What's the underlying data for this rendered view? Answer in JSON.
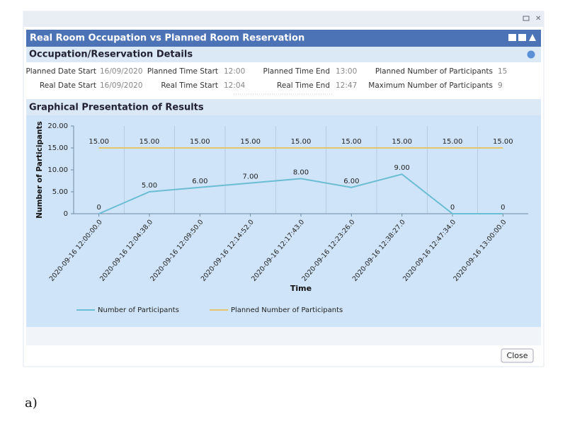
{
  "window": {
    "title": "Real Room Occupation vs Planned Room Reservation"
  },
  "details": {
    "title": "Occupation/Reservation Details",
    "rows": [
      [
        {
          "label": "Planned Date Start",
          "value": "16/09/2020"
        },
        {
          "label": "Planned Time Start",
          "value": "12:00"
        },
        {
          "label": "Planned Time End",
          "value": "13:00"
        },
        {
          "label": "Planned Number of Participants",
          "value": 15
        }
      ],
      [
        {
          "label": "Real Date Start",
          "value": "16/09/2020"
        },
        {
          "label": "Real Time Start",
          "value": "12:04"
        },
        {
          "label": "Real Time End",
          "value": "12:47"
        },
        {
          "label": "Maximum Number of Participants",
          "value": 9
        }
      ]
    ]
  },
  "results": {
    "title": "Graphical Presentation of Results"
  },
  "chart_data": {
    "type": "line",
    "x_label": "Time",
    "y_label": "Number of Participants",
    "categories": [
      "2020-09-16 12:00:00.0",
      "2020-09-16 12:04:38.0",
      "2020-09-16 12:09:50.0",
      "2020-09-16 12:14:52.0",
      "2020-09-16 12:17:43.0",
      "2020-09-16 12:23:26.0",
      "2020-09-16 12:38:27.0",
      "2020-09-16 12:47:34.0",
      "2020-09-16 13:00:00.0"
    ],
    "series": [
      {
        "name": "Number of Participants",
        "color": "#6bbdd3",
        "values": [
          0,
          5,
          6,
          7,
          8,
          6,
          9,
          0,
          0
        ],
        "value_labels": [
          "0",
          "5.00",
          "6.00",
          "7.00",
          "8.00",
          "6.00",
          "9.00",
          "0",
          "0"
        ]
      },
      {
        "name": "Planned Number of Participants",
        "color": "#e6c56a",
        "values": [
          15,
          15,
          15,
          15,
          15,
          15,
          15,
          15,
          15
        ],
        "value_labels": [
          "15.00",
          "15.00",
          "15.00",
          "15.00",
          "15.00",
          "15.00",
          "15.00",
          "15.00",
          "15.00"
        ]
      }
    ],
    "ylim": [
      0,
      20
    ],
    "yticks": [
      0,
      {
        "value": 5,
        "label": "5.00"
      },
      {
        "value": 10,
        "label": "10.00"
      },
      {
        "value": 15,
        "label": "15.00"
      },
      {
        "value": 20,
        "label": "20.00"
      }
    ],
    "legend": "bottom"
  },
  "close_button": "Close",
  "caption": "a)"
}
